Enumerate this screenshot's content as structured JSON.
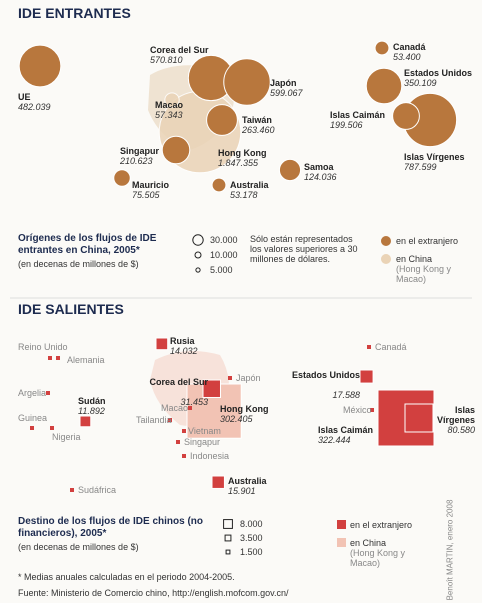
{
  "entrantes": {
    "title": "IDE ENTRANTES",
    "colors": {
      "abroad": "#b8773d",
      "china": "#ead3b6"
    },
    "items": [
      {
        "name": "Hong Kong",
        "value": 1847355,
        "label": "1.847.355",
        "in_china": true
      },
      {
        "name": "UE",
        "value": 482039,
        "label": "482.039"
      },
      {
        "name": "Corea del Sur",
        "value": 570810,
        "label": "570.810"
      },
      {
        "name": "Japón",
        "value": 599067,
        "label": "599.067"
      },
      {
        "name": "Canadá",
        "value": 53400,
        "label": "53.400"
      },
      {
        "name": "Estados Unidos",
        "value": 350109,
        "label": "350.109"
      },
      {
        "name": "Islas Vírgenes",
        "value": 787599,
        "label": "787.599"
      },
      {
        "name": "Islas Caimán",
        "value": 199506,
        "label": "199.506"
      },
      {
        "name": "Macao",
        "value": 57343,
        "label": "57.343",
        "in_china": true
      },
      {
        "name": "Taiwán",
        "value": 263460,
        "label": "263.460"
      },
      {
        "name": "Singapur",
        "value": 210623,
        "label": "210.623"
      },
      {
        "name": "Samoa",
        "value": 124036,
        "label": "124.036"
      },
      {
        "name": "Mauricio",
        "value": 75505,
        "label": "75.505"
      },
      {
        "name": "Australia",
        "value": 53178,
        "label": "53.178"
      }
    ],
    "legend": {
      "title": "Orígenes de los flujos de IDE entrantes en China, 2005*",
      "unit": "(en decenas de millones de $)",
      "sizes": [
        {
          "value": 30000,
          "label": "30.000"
        },
        {
          "value": 10000,
          "label": "10.000"
        },
        {
          "value": 5000,
          "label": "5.000"
        }
      ],
      "note": "Sólo están representados los valores superiores a 30 millones de dólares.",
      "abroad": "en el extranjero",
      "china": "en China",
      "china_note": "(Hong Kong y Macao)"
    }
  },
  "salientes": {
    "title": "IDE SALIENTES",
    "colors": {
      "abroad": "#d2403f",
      "china": "#f2c3b4"
    },
    "items": [
      {
        "name": "Hong Kong",
        "value": 302405,
        "label": "302.405",
        "in_china": true
      },
      {
        "name": "Islas Caimán",
        "value": 322444,
        "label": "322.444"
      },
      {
        "name": "Islas Vírgenes",
        "value": 80580,
        "label": "80.580"
      },
      {
        "name": "Corea del Sur",
        "value": 31453,
        "label": "31.453"
      },
      {
        "name": "Rusia",
        "value": 14032,
        "label": "14.032"
      },
      {
        "name": "Sudán",
        "value": 11892,
        "label": "11.892"
      },
      {
        "name": "Estados Unidos",
        "value": 17588,
        "label": "17.588"
      },
      {
        "name": "Australia",
        "value": 15901,
        "label": "15.901"
      }
    ],
    "places": [
      "Reino Unido",
      "Alemania",
      "Argelia",
      "Guinea",
      "Nigeria",
      "Sudáfrica",
      "Japón",
      "Canadá",
      "México",
      "Macao",
      "Tailandia",
      "Vietnam",
      "Singapur",
      "Indonesia"
    ],
    "legend": {
      "title": "Destino de los flujos de IDE chinos (no financieros), 2005*",
      "unit": "(en decenas de millones de $)",
      "sizes": [
        {
          "value": 8000,
          "label": "8.000"
        },
        {
          "value": 3500,
          "label": "3.500"
        },
        {
          "value": 1500,
          "label": "1.500"
        }
      ],
      "abroad": "en el extranjero",
      "china": "en China",
      "china_note": "(Hong Kong y Macao)"
    }
  },
  "footnote": "* Medias anuales calculadas en el periodo 2004-2005.",
  "source": "Fuente: Ministerio de Comercio chino, http://english.mofcom.gov.cn/",
  "credit": "Benoît MARTIN, enero 2008"
}
